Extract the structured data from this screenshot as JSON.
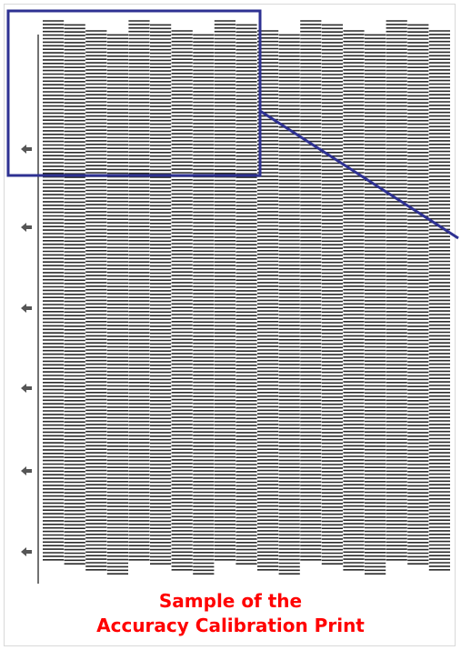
{
  "caption": {
    "line1": "Sample of the",
    "line2": "Accuracy Calibration Print"
  },
  "colors": {
    "stripe": "#2b2b2b",
    "highlight_box": "#2e3192",
    "caption": "#ff0000",
    "arrow": "#555555",
    "frame_border": "#d9d9d9"
  },
  "icons": {
    "side_markers": "left-arrow-icon"
  }
}
